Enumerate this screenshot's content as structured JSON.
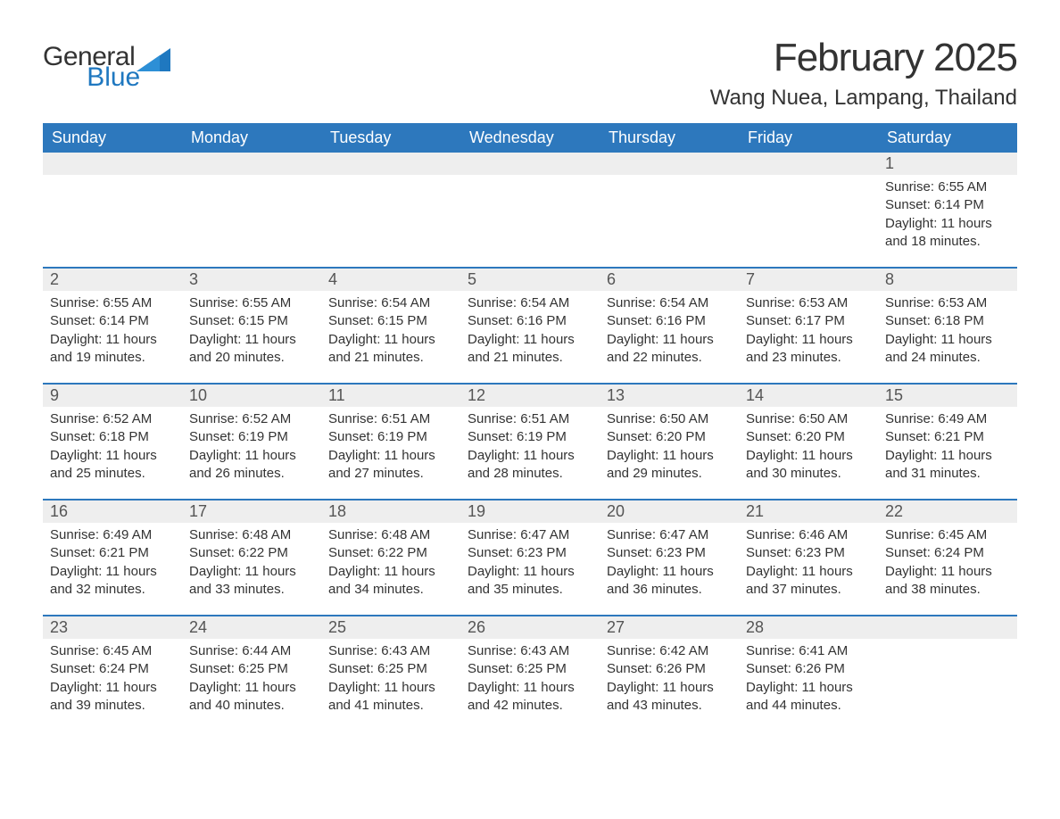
{
  "logo": {
    "general": "General",
    "blue": "Blue"
  },
  "title": "February 2025",
  "location": "Wang Nuea, Lampang, Thailand",
  "colors": {
    "header_bg": "#2d78bd",
    "header_text": "#ffffff",
    "strip_bg": "#eeeeee",
    "cell_border": "#2d78bd",
    "text": "#333333",
    "logo_blue": "#1f78c0"
  },
  "day_headers": [
    "Sunday",
    "Monday",
    "Tuesday",
    "Wednesday",
    "Thursday",
    "Friday",
    "Saturday"
  ],
  "weeks": [
    {
      "numbers": [
        "",
        "",
        "",
        "",
        "",
        "",
        "1"
      ],
      "cells": [
        null,
        null,
        null,
        null,
        null,
        null,
        {
          "sunrise": "Sunrise: 6:55 AM",
          "sunset": "Sunset: 6:14 PM",
          "day1": "Daylight: 11 hours",
          "day2": "and 18 minutes."
        }
      ]
    },
    {
      "numbers": [
        "2",
        "3",
        "4",
        "5",
        "6",
        "7",
        "8"
      ],
      "cells": [
        {
          "sunrise": "Sunrise: 6:55 AM",
          "sunset": "Sunset: 6:14 PM",
          "day1": "Daylight: 11 hours",
          "day2": "and 19 minutes."
        },
        {
          "sunrise": "Sunrise: 6:55 AM",
          "sunset": "Sunset: 6:15 PM",
          "day1": "Daylight: 11 hours",
          "day2": "and 20 minutes."
        },
        {
          "sunrise": "Sunrise: 6:54 AM",
          "sunset": "Sunset: 6:15 PM",
          "day1": "Daylight: 11 hours",
          "day2": "and 21 minutes."
        },
        {
          "sunrise": "Sunrise: 6:54 AM",
          "sunset": "Sunset: 6:16 PM",
          "day1": "Daylight: 11 hours",
          "day2": "and 21 minutes."
        },
        {
          "sunrise": "Sunrise: 6:54 AM",
          "sunset": "Sunset: 6:16 PM",
          "day1": "Daylight: 11 hours",
          "day2": "and 22 minutes."
        },
        {
          "sunrise": "Sunrise: 6:53 AM",
          "sunset": "Sunset: 6:17 PM",
          "day1": "Daylight: 11 hours",
          "day2": "and 23 minutes."
        },
        {
          "sunrise": "Sunrise: 6:53 AM",
          "sunset": "Sunset: 6:18 PM",
          "day1": "Daylight: 11 hours",
          "day2": "and 24 minutes."
        }
      ]
    },
    {
      "numbers": [
        "9",
        "10",
        "11",
        "12",
        "13",
        "14",
        "15"
      ],
      "cells": [
        {
          "sunrise": "Sunrise: 6:52 AM",
          "sunset": "Sunset: 6:18 PM",
          "day1": "Daylight: 11 hours",
          "day2": "and 25 minutes."
        },
        {
          "sunrise": "Sunrise: 6:52 AM",
          "sunset": "Sunset: 6:19 PM",
          "day1": "Daylight: 11 hours",
          "day2": "and 26 minutes."
        },
        {
          "sunrise": "Sunrise: 6:51 AM",
          "sunset": "Sunset: 6:19 PM",
          "day1": "Daylight: 11 hours",
          "day2": "and 27 minutes."
        },
        {
          "sunrise": "Sunrise: 6:51 AM",
          "sunset": "Sunset: 6:19 PM",
          "day1": "Daylight: 11 hours",
          "day2": "and 28 minutes."
        },
        {
          "sunrise": "Sunrise: 6:50 AM",
          "sunset": "Sunset: 6:20 PM",
          "day1": "Daylight: 11 hours",
          "day2": "and 29 minutes."
        },
        {
          "sunrise": "Sunrise: 6:50 AM",
          "sunset": "Sunset: 6:20 PM",
          "day1": "Daylight: 11 hours",
          "day2": "and 30 minutes."
        },
        {
          "sunrise": "Sunrise: 6:49 AM",
          "sunset": "Sunset: 6:21 PM",
          "day1": "Daylight: 11 hours",
          "day2": "and 31 minutes."
        }
      ]
    },
    {
      "numbers": [
        "16",
        "17",
        "18",
        "19",
        "20",
        "21",
        "22"
      ],
      "cells": [
        {
          "sunrise": "Sunrise: 6:49 AM",
          "sunset": "Sunset: 6:21 PM",
          "day1": "Daylight: 11 hours",
          "day2": "and 32 minutes."
        },
        {
          "sunrise": "Sunrise: 6:48 AM",
          "sunset": "Sunset: 6:22 PM",
          "day1": "Daylight: 11 hours",
          "day2": "and 33 minutes."
        },
        {
          "sunrise": "Sunrise: 6:48 AM",
          "sunset": "Sunset: 6:22 PM",
          "day1": "Daylight: 11 hours",
          "day2": "and 34 minutes."
        },
        {
          "sunrise": "Sunrise: 6:47 AM",
          "sunset": "Sunset: 6:23 PM",
          "day1": "Daylight: 11 hours",
          "day2": "and 35 minutes."
        },
        {
          "sunrise": "Sunrise: 6:47 AM",
          "sunset": "Sunset: 6:23 PM",
          "day1": "Daylight: 11 hours",
          "day2": "and 36 minutes."
        },
        {
          "sunrise": "Sunrise: 6:46 AM",
          "sunset": "Sunset: 6:23 PM",
          "day1": "Daylight: 11 hours",
          "day2": "and 37 minutes."
        },
        {
          "sunrise": "Sunrise: 6:45 AM",
          "sunset": "Sunset: 6:24 PM",
          "day1": "Daylight: 11 hours",
          "day2": "and 38 minutes."
        }
      ]
    },
    {
      "numbers": [
        "23",
        "24",
        "25",
        "26",
        "27",
        "28",
        ""
      ],
      "cells": [
        {
          "sunrise": "Sunrise: 6:45 AM",
          "sunset": "Sunset: 6:24 PM",
          "day1": "Daylight: 11 hours",
          "day2": "and 39 minutes."
        },
        {
          "sunrise": "Sunrise: 6:44 AM",
          "sunset": "Sunset: 6:25 PM",
          "day1": "Daylight: 11 hours",
          "day2": "and 40 minutes."
        },
        {
          "sunrise": "Sunrise: 6:43 AM",
          "sunset": "Sunset: 6:25 PM",
          "day1": "Daylight: 11 hours",
          "day2": "and 41 minutes."
        },
        {
          "sunrise": "Sunrise: 6:43 AM",
          "sunset": "Sunset: 6:25 PM",
          "day1": "Daylight: 11 hours",
          "day2": "and 42 minutes."
        },
        {
          "sunrise": "Sunrise: 6:42 AM",
          "sunset": "Sunset: 6:26 PM",
          "day1": "Daylight: 11 hours",
          "day2": "and 43 minutes."
        },
        {
          "sunrise": "Sunrise: 6:41 AM",
          "sunset": "Sunset: 6:26 PM",
          "day1": "Daylight: 11 hours",
          "day2": "and 44 minutes."
        },
        null
      ]
    }
  ]
}
